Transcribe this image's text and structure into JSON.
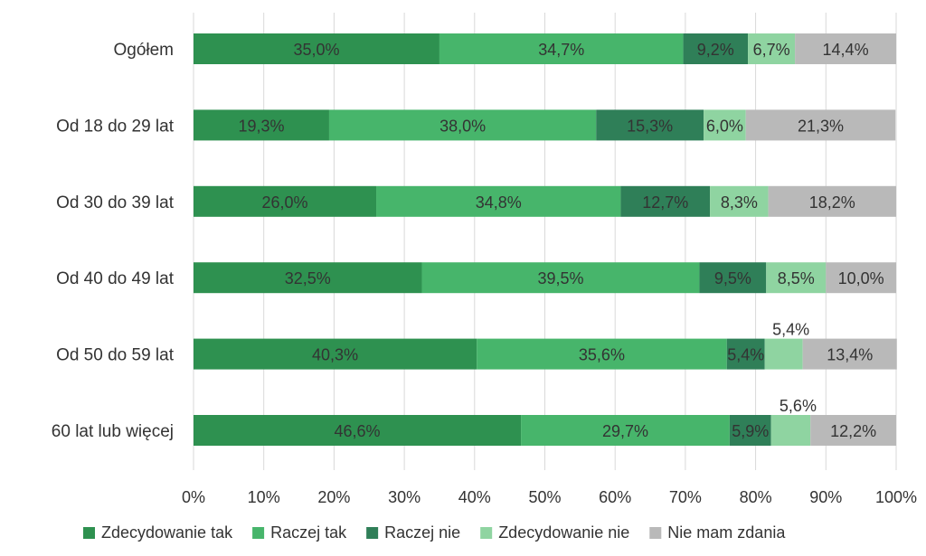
{
  "chart_data": {
    "type": "bar",
    "orientation": "horizontal",
    "stacked": "100%",
    "categories": [
      "Ogółem",
      "Od 18 do 29 lat",
      "Od 30 do 39 lat",
      "Od 40 do 49 lat",
      "Od 50 do 59 lat",
      "60 lat lub więcej"
    ],
    "series": [
      {
        "name": "Zdecydowanie tak",
        "color": "#2e9150",
        "values": [
          35.0,
          19.3,
          26.0,
          32.5,
          40.3,
          46.6
        ],
        "labels": [
          "35,0%",
          "19,3%",
          "26,0%",
          "32,5%",
          "40,3%",
          "46,6%"
        ]
      },
      {
        "name": "Raczej tak",
        "color": "#47b56b",
        "values": [
          34.7,
          38.0,
          34.8,
          39.5,
          35.6,
          29.7
        ],
        "labels": [
          "34,7%",
          "38,0%",
          "34,8%",
          "39,5%",
          "35,6%",
          "29,7%"
        ]
      },
      {
        "name": "Raczej nie",
        "color": "#2f7f58",
        "values": [
          9.2,
          15.3,
          12.7,
          9.5,
          5.4,
          5.9
        ],
        "labels": [
          "9,2%",
          "15,3%",
          "12,7%",
          "9,5%",
          "5,4%",
          "5,9%"
        ]
      },
      {
        "name": "Zdecydowanie nie",
        "color": "#8fd4a1",
        "values": [
          6.7,
          6.0,
          8.3,
          8.5,
          5.4,
          5.6
        ],
        "labels": [
          "6,7%",
          "6,0%",
          "8,3%",
          "8,5%",
          "5,4%",
          "5,6%"
        ]
      },
      {
        "name": "Nie mam zdania",
        "color": "#b9b9b9",
        "values": [
          14.4,
          21.3,
          18.2,
          10.0,
          13.4,
          12.2
        ],
        "labels": [
          "14,4%",
          "21,3%",
          "18,2%",
          "10,0%",
          "13,4%",
          "12,2%"
        ]
      }
    ],
    "xlim": [
      0,
      100
    ],
    "xticks": [
      "0%",
      "10%",
      "20%",
      "30%",
      "40%",
      "50%",
      "60%",
      "70%",
      "80%",
      "90%",
      "100%"
    ],
    "grid": "vertical",
    "legend_position": "bottom",
    "title": "",
    "xlabel": "",
    "ylabel": ""
  }
}
